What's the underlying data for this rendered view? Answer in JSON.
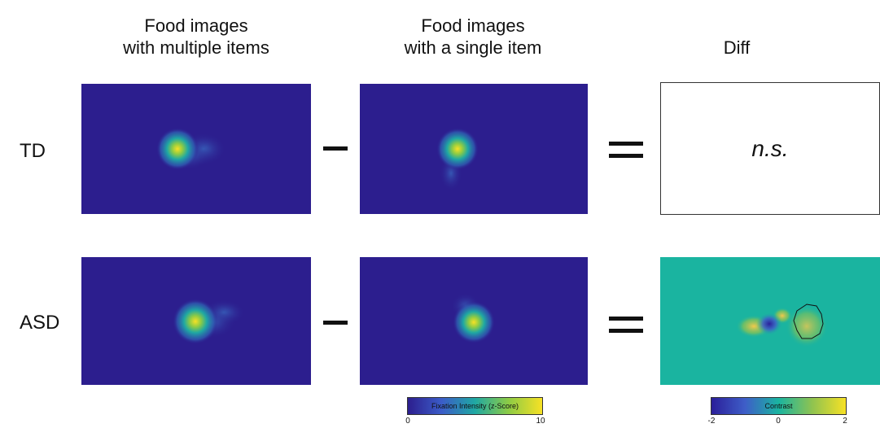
{
  "columns": {
    "col1_title": "Food images\nwith multiple items",
    "col2_title": "Food images\nwith a single item",
    "col3_title": "Diff"
  },
  "rows": {
    "td_label": "TD",
    "asd_label": "ASD"
  },
  "td_diff_text": "n.s.",
  "colorbar_fixation": {
    "label": "Fixation Intensity (z-Score)",
    "min": "0",
    "max": "10"
  },
  "colorbar_contrast": {
    "label": "Contrast",
    "min": "-2",
    "mid": "0",
    "max": "2"
  },
  "colors": {
    "heatmap_background": "#2c1e8e",
    "heatmap_peak": "#f7e125",
    "diff_background": "#1ab4a0"
  }
}
